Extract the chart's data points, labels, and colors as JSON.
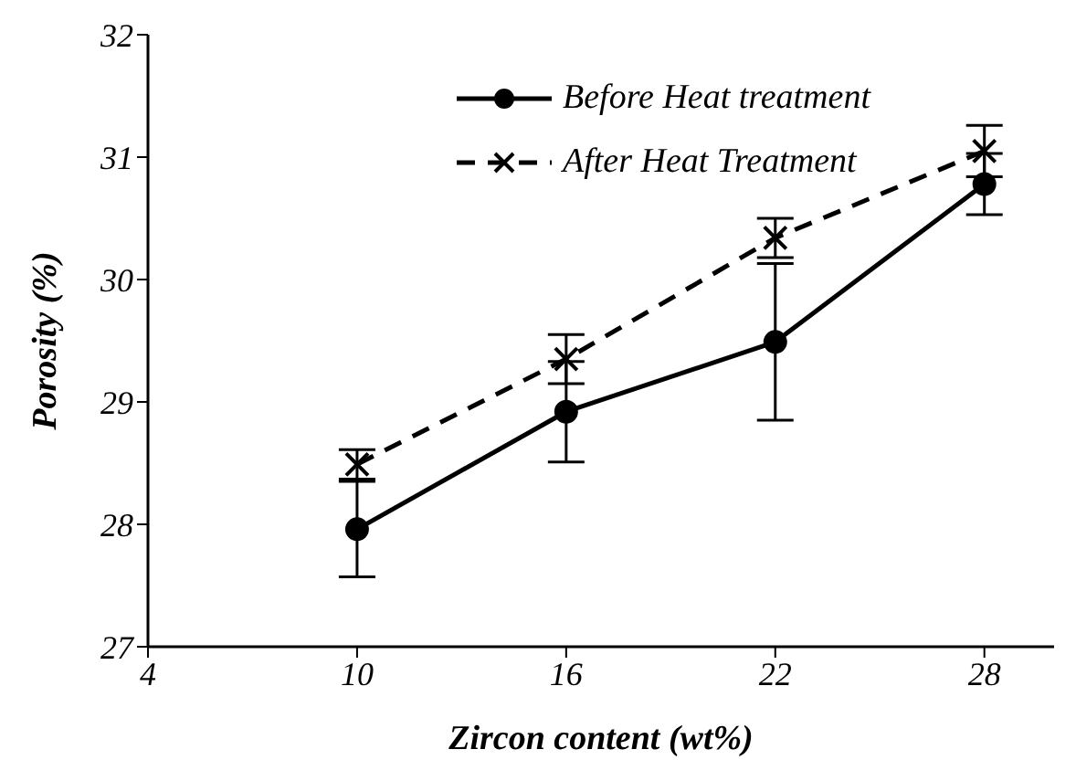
{
  "chart_data": {
    "type": "line",
    "xlabel": "Zircon content (wt%)",
    "ylabel": "Porosity (%)",
    "x": [
      10,
      16,
      22,
      28
    ],
    "xlim": [
      4,
      30
    ],
    "xticks": [
      4,
      10,
      16,
      22,
      28
    ],
    "ylim": [
      27,
      32
    ],
    "yticks": [
      27,
      28,
      29,
      30,
      31,
      32
    ],
    "grid": false,
    "legend": "top right",
    "series": [
      {
        "name": "Before Heat treatment",
        "color": "#000000",
        "marker": "circle",
        "line_style": "solid",
        "values": [
          27.96,
          28.92,
          29.49,
          30.78
        ],
        "errors": [
          0.39,
          0.41,
          0.64,
          0.25
        ]
      },
      {
        "name": "After Heat Treatment",
        "color": "#000000",
        "marker": "cross",
        "line_style": "dashed",
        "values": [
          28.49,
          29.35,
          30.34,
          31.05
        ],
        "errors": [
          0.12,
          0.2,
          0.16,
          0.21
        ]
      }
    ]
  }
}
